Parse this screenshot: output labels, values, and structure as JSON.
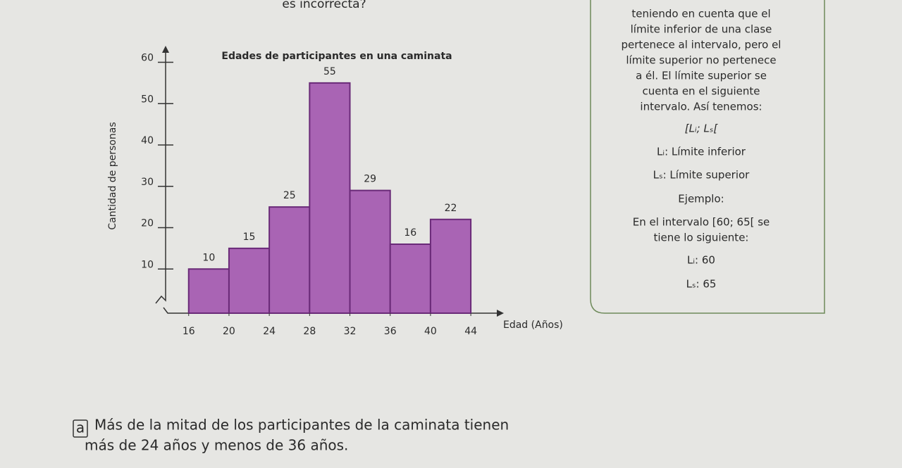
{
  "header": {
    "cut_text": "es incorrecta?"
  },
  "chart_data": {
    "type": "histogram",
    "title": "Edades de participantes en una caminata",
    "x_label": "Edad (Años)",
    "y_label": "Cantidad de personas",
    "bins": [
      16,
      20,
      24,
      28,
      32,
      36,
      40,
      44
    ],
    "values": [
      10,
      15,
      25,
      55,
      29,
      16,
      22
    ],
    "color": "#a964b4",
    "edge_color": "#6a2a78",
    "xlim": [
      13.5,
      47
    ],
    "xticks": [
      16,
      20,
      24,
      28,
      32,
      36,
      40,
      44
    ],
    "ylim": [
      0,
      64
    ],
    "yticks": [
      10,
      20,
      30,
      40,
      50,
      60
    ],
    "grid": false
  },
  "sidebar": {
    "lines": [
      "teniendo en cuenta que el",
      "límite inferior de una clase",
      "pertenece al intervalo, pero el",
      "límite superior no pertenece",
      "a él. El límite superior se",
      "cuenta en el siguiente",
      "intervalo. Así tenemos:"
    ],
    "notation": "[Lᵢ; Lₛ[",
    "def_lower": "Lᵢ: Límite inferior",
    "def_upper": "Lₛ: Límite superior",
    "example_title": "Ejemplo:",
    "example_lines": [
      "En el intervalo [60; 65[ se",
      "tiene lo siguiente:"
    ],
    "example_lower": "Lᵢ: 60",
    "example_upper": "Lₛ: 65"
  },
  "question": {
    "letter": "a",
    "lines": [
      "Más de la mitad de los participantes de la caminata tienen",
      "más de 24 años y menos de 36 años."
    ]
  }
}
